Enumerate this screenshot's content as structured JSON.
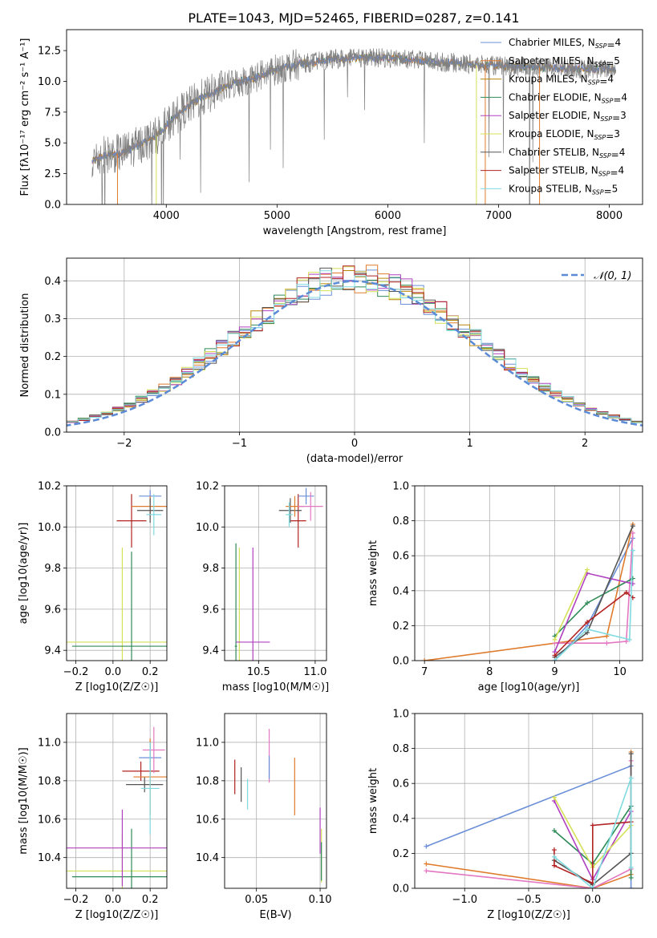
{
  "figure": {
    "title": "PLATE=1043, MJD=52465, FIBERID=0287, z=0.141"
  },
  "chart_data": [
    {
      "id": "spectrum",
      "type": "line",
      "xlabel": "wavelength [Angstrom, rest frame]",
      "ylabel": "Flux [fλ10⁻¹⁷ erg cm⁻² s⁻¹ A⁻¹]",
      "xlim": [
        3100,
        8300
      ],
      "ylim": [
        0,
        14.2
      ],
      "x_ticks": [
        4000,
        5000,
        6000,
        7000,
        8000
      ],
      "y_ticks": [
        0.0,
        2.5,
        5.0,
        7.5,
        10.0,
        12.5
      ],
      "grid": false,
      "legend_location": "upper right",
      "data_series": {
        "name": "",
        "color": "#808080",
        "knots": [
          [
            3330,
            3.5
          ],
          [
            3450,
            4.0
          ],
          [
            3600,
            4.2
          ],
          [
            3750,
            4.8
          ],
          [
            3900,
            5.5
          ],
          [
            4000,
            6.4
          ],
          [
            4100,
            7.3
          ],
          [
            4250,
            8.3
          ],
          [
            4400,
            9.0
          ],
          [
            4600,
            9.8
          ],
          [
            4800,
            10.3
          ],
          [
            5000,
            11.0
          ],
          [
            5200,
            11.4
          ],
          [
            5500,
            11.8
          ],
          [
            5800,
            11.9
          ],
          [
            6000,
            11.9
          ],
          [
            6300,
            11.7
          ],
          [
            6600,
            11.5
          ],
          [
            6900,
            11.3
          ],
          [
            7200,
            11.2
          ],
          [
            7500,
            11.1
          ],
          [
            7800,
            11.0
          ],
          [
            8060,
            11.0
          ]
        ]
      },
      "legend": [
        {
          "name": "Chabrier MILES, N_SSP=4",
          "label": "Chabrier MILES, N",
          "n": "4",
          "color": "#6a8fd8"
        },
        {
          "name": "Salpeter MILES, N_SSP=5",
          "label": "Salpeter MILES, N",
          "n": "5",
          "color": "#e07b2c"
        },
        {
          "name": "Kroupa MILES, N_SSP=4",
          "label": "Kroupa MILES, N",
          "n": "4",
          "color": "#b8860b"
        },
        {
          "name": "Chabrier ELODIE, N_SSP=4",
          "label": "Chabrier ELODIE, N",
          "n": "4",
          "color": "#2e8b57"
        },
        {
          "name": "Salpeter ELODIE, N_SSP=3",
          "label": "Salpeter ELODIE, N",
          "n": "3",
          "color": "#b040c0"
        },
        {
          "name": "Kroupa ELODIE, N_SSP=3",
          "label": "Kroupa ELODIE, N",
          "n": "3",
          "color": "#d4e157"
        },
        {
          "name": "Chabrier STELIB, N_SSP=4",
          "label": "Chabrier STELIB, N",
          "n": "4",
          "color": "#555555"
        },
        {
          "name": "Salpeter STELIB, N_SSP=4",
          "label": "Salpeter STELIB, N",
          "n": "4",
          "color": "#b22222"
        },
        {
          "name": "Kroupa STELIB, N_SSP=5",
          "label": "Kroupa STELIB, N",
          "n": "5",
          "color": "#7fdbe0"
        }
      ],
      "legend_subscript": "SSP"
    },
    {
      "id": "residuals",
      "type": "histogram",
      "xlabel": "(data-model)/error",
      "ylabel": "Normed distribution",
      "xlim": [
        -2.5,
        2.5
      ],
      "ylim": [
        0,
        0.46
      ],
      "x_ticks": [
        -2,
        -1,
        0,
        1,
        2
      ],
      "y_ticks": [
        0.0,
        0.1,
        0.2,
        0.3,
        0.4
      ],
      "grid": true,
      "bin_width": 0.1,
      "legend": [
        {
          "name": "N(0,1)",
          "label": "𝒩(0, 1)",
          "color": "#5b8bd6"
        }
      ],
      "gaussian": {
        "mean": 0,
        "sigma": 1
      }
    },
    {
      "id": "age-vs-Z",
      "type": "errorbar",
      "xlabel": "Z [log10(Z/Z☉)]",
      "ylabel": "age [log10(age/yr)]",
      "xlim": [
        -0.25,
        0.29
      ],
      "ylim": [
        9.35,
        10.2
      ],
      "x_ticks": [
        -0.2,
        0.0,
        0.2
      ],
      "y_ticks": [
        9.4,
        9.6,
        9.8,
        10.0,
        10.2
      ],
      "points": [
        {
          "x": 0.05,
          "y": 9.44,
          "xerr": 0.3,
          "yerr": 0.46,
          "color": "#d4e157"
        },
        {
          "x": 0.1,
          "y": 9.42,
          "xerr": 0.32,
          "yerr": 0.46,
          "color": "#2e8b57"
        },
        {
          "x": 0.1,
          "y": 10.03,
          "xerr": 0.08,
          "yerr": 0.13,
          "color": "#b22222"
        },
        {
          "x": 0.2,
          "y": 10.15,
          "xerr": 0.06,
          "yerr": 0.03,
          "color": "#6a8fd8"
        },
        {
          "x": 0.2,
          "y": 10.1,
          "xerr": 0.1,
          "yerr": 0.05,
          "color": "#e07b2c"
        },
        {
          "x": 0.2,
          "y": 10.08,
          "xerr": 0.07,
          "yerr": 0.06,
          "color": "#555555"
        },
        {
          "x": 0.22,
          "y": 10.06,
          "xerr": 0.04,
          "yerr": 0.1,
          "color": "#7fdbe0"
        }
      ]
    },
    {
      "id": "age-vs-mass",
      "type": "errorbar",
      "xlabel": "mass [log10(M/M☉)]",
      "ylabel": "",
      "xlim": [
        10.2,
        11.1
      ],
      "ylim": [
        9.35,
        10.2
      ],
      "x_ticks": [
        10.5,
        11.0
      ],
      "y_ticks": [
        9.4,
        9.6,
        9.8,
        10.0,
        10.2
      ],
      "points": [
        {
          "x": 10.3,
          "y": 9.42,
          "xerr": 0.01,
          "yerr": 0.5,
          "color": "#2e8b57"
        },
        {
          "x": 10.33,
          "y": 9.44,
          "xerr": 0.01,
          "yerr": 0.46,
          "color": "#d4e157"
        },
        {
          "x": 10.45,
          "y": 9.44,
          "xerr": 0.15,
          "yerr": 0.46,
          "color": "#b040c0"
        },
        {
          "x": 10.85,
          "y": 10.03,
          "xerr": 0.07,
          "yerr": 0.13,
          "color": "#b22222"
        },
        {
          "x": 10.78,
          "y": 10.08,
          "xerr": 0.1,
          "yerr": 0.06,
          "color": "#555555"
        },
        {
          "x": 10.82,
          "y": 10.1,
          "xerr": 0.08,
          "yerr": 0.05,
          "color": "#e07b2c"
        },
        {
          "x": 10.92,
          "y": 10.15,
          "xerr": 0.07,
          "yerr": 0.04,
          "color": "#6a8fd8"
        },
        {
          "x": 10.96,
          "y": 10.1,
          "xerr": 0.11,
          "yerr": 0.07,
          "color": "#e377c2"
        },
        {
          "x": 10.77,
          "y": 10.06,
          "xerr": 0.03,
          "yerr": 0.06,
          "color": "#7fdbe0"
        }
      ]
    },
    {
      "id": "weight-vs-age",
      "type": "line",
      "xlabel": "age [log10(age/yr)]",
      "ylabel": "mass weight",
      "xlim": [
        6.85,
        10.35
      ],
      "ylim": [
        0,
        1.0
      ],
      "x_ticks": [
        7,
        8,
        9,
        10
      ],
      "y_ticks": [
        0.0,
        0.2,
        0.4,
        0.6,
        0.8,
        1.0
      ],
      "series": [
        {
          "color": "#6a8fd8",
          "x": [
            9.0,
            9.5,
            10.2
          ],
          "y": [
            0.0,
            0.2,
            0.7
          ]
        },
        {
          "color": "#e07b2c",
          "x": [
            7.0,
            9.8,
            10.2
          ],
          "y": [
            0.0,
            0.14,
            0.78
          ]
        },
        {
          "color": "#e377c2",
          "x": [
            9.0,
            9.8,
            10.1,
            10.2
          ],
          "y": [
            0.1,
            0.1,
            0.11,
            0.73
          ]
        },
        {
          "color": "#2e8b57",
          "x": [
            9.0,
            9.5,
            10.2
          ],
          "y": [
            0.14,
            0.33,
            0.47
          ]
        },
        {
          "color": "#b040c0",
          "x": [
            9.0,
            9.5,
            10.2
          ],
          "y": [
            0.05,
            0.5,
            0.44
          ]
        },
        {
          "color": "#d4e157",
          "x": [
            9.0,
            9.5
          ],
          "y": [
            0.12,
            0.52
          ]
        },
        {
          "color": "#555555",
          "x": [
            9.0,
            9.5,
            10.2
          ],
          "y": [
            0.02,
            0.16,
            0.77
          ]
        },
        {
          "color": "#b22222",
          "x": [
            9.0,
            9.5,
            10.1,
            10.2
          ],
          "y": [
            0.03,
            0.22,
            0.39,
            0.36
          ]
        },
        {
          "color": "#7fdbe0",
          "x": [
            9.0,
            9.5,
            10.15,
            10.2
          ],
          "y": [
            0.0,
            0.18,
            0.12,
            0.63
          ]
        }
      ]
    },
    {
      "id": "mass-vs-Z",
      "type": "errorbar",
      "xlabel": "Z [log10(Z/Z☉)]",
      "ylabel": "mass [log10(M/M☉)]",
      "xlim": [
        -0.25,
        0.29
      ],
      "ylim": [
        10.24,
        11.15
      ],
      "x_ticks": [
        -0.2,
        0.0,
        0.2
      ],
      "y_ticks": [
        10.4,
        10.6,
        10.8,
        11.0
      ],
      "points": [
        {
          "x": 0.05,
          "y": 10.33,
          "xerr": 0.3,
          "yerr": 0.2,
          "color": "#d4e157"
        },
        {
          "x": 0.1,
          "y": 10.3,
          "xerr": 0.32,
          "yerr": 0.25,
          "color": "#2e8b57"
        },
        {
          "x": 0.05,
          "y": 10.45,
          "xerr": 0.3,
          "yerr": 0.2,
          "color": "#b040c0"
        },
        {
          "x": 0.15,
          "y": 10.85,
          "xerr": 0.1,
          "yerr": 0.05,
          "color": "#b22222"
        },
        {
          "x": 0.17,
          "y": 10.78,
          "xerr": 0.1,
          "yerr": 0.04,
          "color": "#555555"
        },
        {
          "x": 0.2,
          "y": 10.82,
          "xerr": 0.09,
          "yerr": 0.2,
          "color": "#e07b2c"
        },
        {
          "x": 0.2,
          "y": 10.92,
          "xerr": 0.06,
          "yerr": 0.08,
          "color": "#6a8fd8"
        },
        {
          "x": 0.22,
          "y": 10.96,
          "xerr": 0.06,
          "yerr": 0.12,
          "color": "#e377c2"
        },
        {
          "x": 0.2,
          "y": 10.76,
          "xerr": 0.05,
          "yerr": 0.24,
          "color": "#7fdbe0"
        }
      ]
    },
    {
      "id": "mass-vs-EBV",
      "type": "errorbar",
      "xlabel": "E(B-V)",
      "ylabel": "",
      "xlim": [
        0.025,
        0.105
      ],
      "ylim": [
        10.24,
        11.15
      ],
      "x_ticks": [
        0.05,
        0.1
      ],
      "y_ticks": [
        10.4,
        10.6,
        10.8,
        11.0
      ],
      "points": [
        {
          "x": 0.033,
          "y": 10.82,
          "xerr": 0,
          "yerr": 0.09,
          "color": "#b22222"
        },
        {
          "x": 0.038,
          "y": 10.78,
          "xerr": 0,
          "yerr": 0.09,
          "color": "#555555"
        },
        {
          "x": 0.043,
          "y": 10.73,
          "xerr": 0,
          "yerr": 0.08,
          "color": "#7fdbe0"
        },
        {
          "x": 0.06,
          "y": 10.93,
          "xerr": 0,
          "yerr": 0.14,
          "color": "#e377c2"
        },
        {
          "x": 0.06,
          "y": 10.87,
          "xerr": 0,
          "yerr": 0.06,
          "color": "#6a8fd8"
        },
        {
          "x": 0.08,
          "y": 10.77,
          "xerr": 0,
          "yerr": 0.15,
          "color": "#e07b2c"
        },
        {
          "x": 0.1,
          "y": 10.54,
          "xerr": 0,
          "yerr": 0.12,
          "color": "#b040c0"
        },
        {
          "x": 0.101,
          "y": 10.41,
          "xerr": 0,
          "yerr": 0.14,
          "color": "#d4e157"
        },
        {
          "x": 0.101,
          "y": 10.38,
          "xerr": 0,
          "yerr": 0.1,
          "color": "#2e8b57"
        }
      ]
    },
    {
      "id": "weight-vs-Z",
      "type": "line",
      "xlabel": "Z [log10(Z/Z☉)]",
      "ylabel": "mass weight",
      "xlim": [
        -1.39,
        0.39
      ],
      "ylim": [
        0,
        1.0
      ],
      "x_ticks": [
        -1.0,
        -0.5,
        0.0
      ],
      "y_ticks": [
        0.0,
        0.2,
        0.4,
        0.6,
        0.8,
        1.0
      ],
      "series": [
        {
          "color": "#6a8fd8",
          "x": [
            -1.3,
            0.3,
            0.3
          ],
          "y": [
            0.24,
            0.7,
            0.0
          ]
        },
        {
          "color": "#e07b2c",
          "x": [
            -1.3,
            0.0,
            0.3,
            0.3
          ],
          "y": [
            0.14,
            0.0,
            0.08,
            0.78
          ]
        },
        {
          "color": "#e377c2",
          "x": [
            -1.3,
            0.0,
            0.3,
            0.3
          ],
          "y": [
            0.1,
            0.0,
            0.11,
            0.73
          ]
        },
        {
          "color": "#2e8b57",
          "x": [
            -0.3,
            0.0,
            0.3,
            0.3
          ],
          "y": [
            0.33,
            0.14,
            0.47,
            0.06
          ]
        },
        {
          "color": "#b040c0",
          "x": [
            -0.3,
            0.0,
            0.3
          ],
          "y": [
            0.5,
            0.05,
            0.44
          ]
        },
        {
          "color": "#d4e157",
          "x": [
            -0.3,
            0.0,
            0.3
          ],
          "y": [
            0.52,
            0.12,
            0.36
          ]
        },
        {
          "color": "#555555",
          "x": [
            -0.3,
            0.0,
            0.3,
            0.3
          ],
          "y": [
            0.16,
            0.02,
            0.2,
            0.77
          ]
        },
        {
          "color": "#b22222",
          "x": [
            -0.3,
            -0.3,
            0.0,
            0.0,
            0.3
          ],
          "y": [
            0.22,
            0.13,
            0.03,
            0.36,
            0.38
          ]
        },
        {
          "color": "#7fdbe0",
          "x": [
            -0.3,
            0.0,
            0.3,
            0.3
          ],
          "y": [
            0.18,
            0.0,
            0.63,
            0.12
          ]
        }
      ]
    }
  ]
}
